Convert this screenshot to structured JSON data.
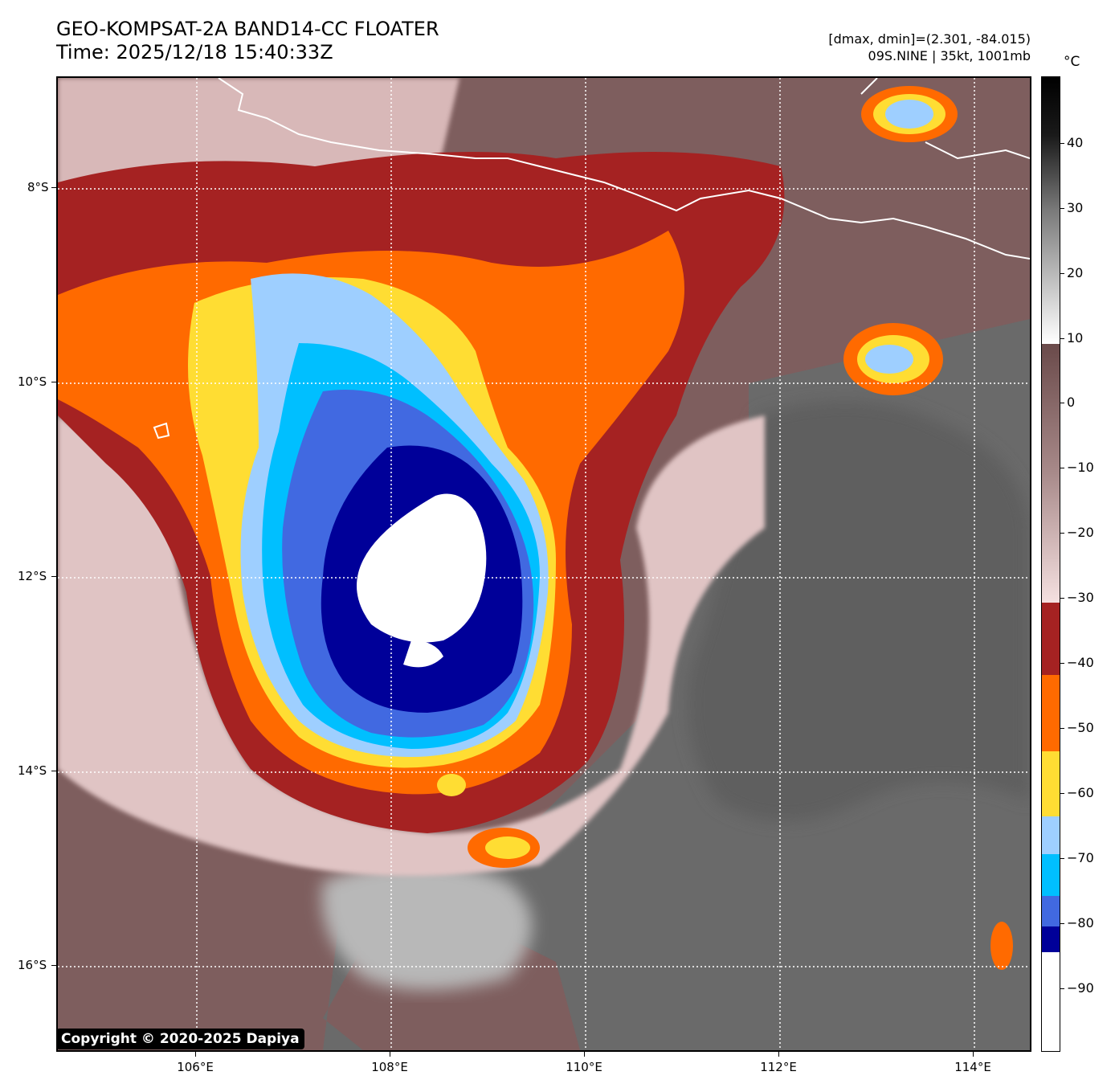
{
  "header": {
    "title_line1": "GEO-KOMPSAT-2A BAND14-CC FLOATER",
    "title_line2": "Time: 2025/12/18 15:40:33Z",
    "range_text": "[dmax, dmin]=(2.301, -84.015)",
    "storm_text": "09S.NINE | 35kt, 1001mb"
  },
  "axes": {
    "lat_labels": [
      "8°S",
      "10°S",
      "12°S",
      "14°S",
      "16°S"
    ],
    "lon_labels": [
      "106°E",
      "108°E",
      "110°E",
      "112°E",
      "114°E"
    ]
  },
  "colorbar": {
    "unit": "°C",
    "labels": [
      "40",
      "30",
      "20",
      "10",
      "0",
      "−10",
      "−20",
      "−30",
      "−40",
      "−50",
      "−60",
      "−70",
      "−80",
      "−90"
    ]
  },
  "colors": {
    "white_core": "#ffffff",
    "dark_blue": "#000099",
    "royal_blue": "#4169e1",
    "sky_blue": "#00bfff",
    "light_blue": "#9ecfff",
    "yellow": "#ffdd33",
    "orange": "#ff6a00",
    "dark_red": "#a52222",
    "pale_pink": "#e8c8c8",
    "mauve": "#7e5e5e",
    "gray": "#6a6a6a"
  },
  "copyright": "Copyright © 2020-2025 Dapiya"
}
